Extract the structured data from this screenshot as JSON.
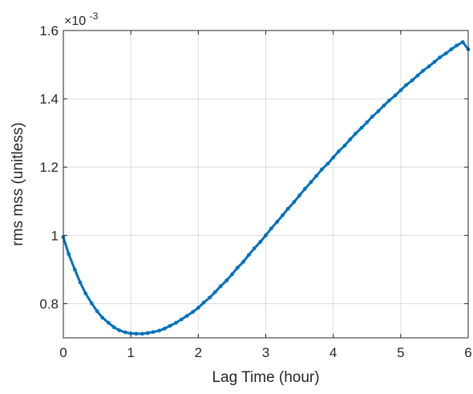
{
  "chart_data": {
    "type": "line",
    "title": "",
    "xlabel": "Lag Time (hour)",
    "ylabel": "rms mss (unitless)",
    "y_exponent_label": {
      "base": "×10",
      "exp": "-3"
    },
    "xlim": [
      0,
      6
    ],
    "ylim": [
      0.7,
      1.6
    ],
    "x_ticks": [
      0,
      1,
      2,
      3,
      4,
      5,
      6
    ],
    "x_tick_labels": [
      "0",
      "1",
      "2",
      "3",
      "4",
      "5",
      "6"
    ],
    "y_ticks": [
      0.8,
      1.0,
      1.2,
      1.4,
      1.6
    ],
    "y_tick_labels": [
      "0.8",
      "1",
      "1.2",
      "1.4",
      "1.6"
    ],
    "grid": true,
    "line_color": "#0072BD",
    "series": [
      {
        "x": [
          0.0,
          0.08,
          0.17,
          0.25,
          0.33,
          0.42,
          0.5,
          0.58,
          0.67,
          0.75,
          0.83,
          0.92,
          1.0,
          1.08,
          1.17,
          1.25,
          1.33,
          1.42,
          1.5,
          1.58,
          1.67,
          1.75,
          1.83,
          1.92,
          2.0,
          2.08,
          2.17,
          2.25,
          2.33,
          2.42,
          2.5,
          2.58,
          2.67,
          2.75,
          2.83,
          2.92,
          3.0,
          3.08,
          3.17,
          3.25,
          3.33,
          3.42,
          3.5,
          3.58,
          3.67,
          3.75,
          3.83,
          3.92,
          4.0,
          4.08,
          4.17,
          4.25,
          4.33,
          4.42,
          4.5,
          4.58,
          4.67,
          4.75,
          4.83,
          4.92,
          5.0,
          5.08,
          5.17,
          5.25,
          5.33,
          5.42,
          5.5,
          5.58,
          5.67,
          5.75,
          5.83,
          5.92,
          6.0
        ],
        "values": [
          0.995,
          0.945,
          0.9,
          0.862,
          0.83,
          0.801,
          0.778,
          0.759,
          0.744,
          0.731,
          0.722,
          0.716,
          0.713,
          0.712,
          0.712,
          0.714,
          0.717,
          0.721,
          0.727,
          0.735,
          0.744,
          0.754,
          0.764,
          0.776,
          0.788,
          0.803,
          0.818,
          0.834,
          0.851,
          0.868,
          0.886,
          0.905,
          0.923,
          0.943,
          0.962,
          0.981,
          1.0,
          1.02,
          1.04,
          1.059,
          1.078,
          1.098,
          1.117,
          1.136,
          1.156,
          1.174,
          1.193,
          1.21,
          1.228,
          1.246,
          1.263,
          1.281,
          1.298,
          1.315,
          1.331,
          1.348,
          1.364,
          1.38,
          1.395,
          1.41,
          1.425,
          1.44,
          1.454,
          1.468,
          1.482,
          1.495,
          1.508,
          1.521,
          1.533,
          1.545,
          1.556,
          1.566,
          1.545
        ]
      }
    ]
  }
}
